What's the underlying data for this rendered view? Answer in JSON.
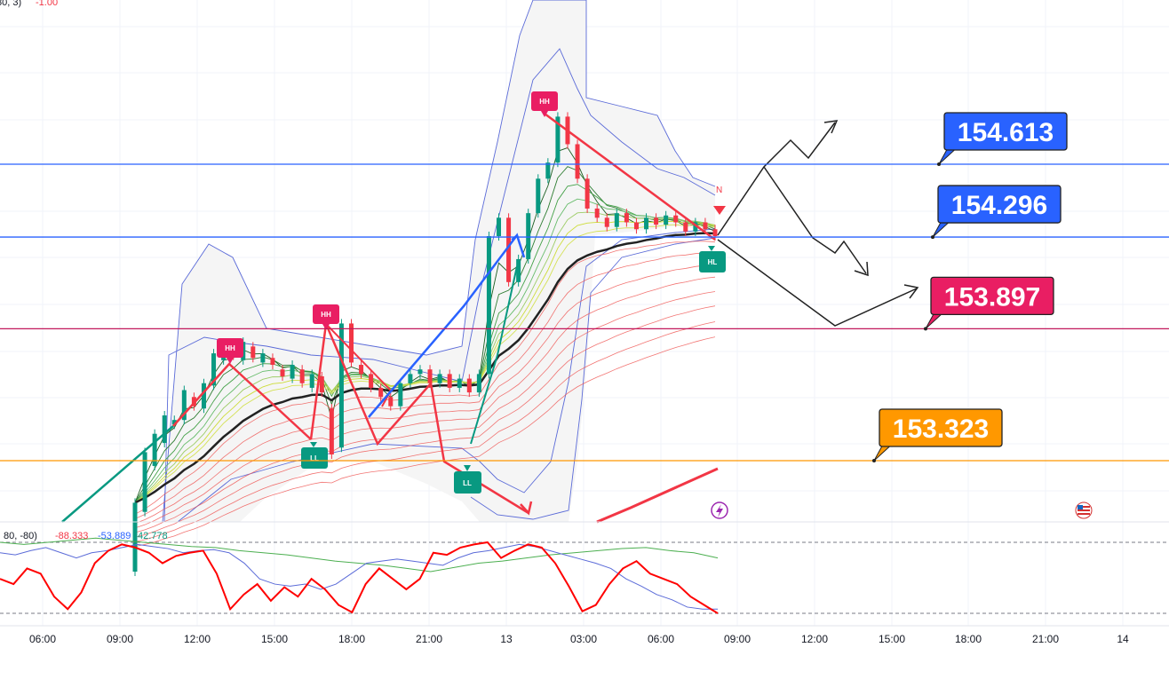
{
  "top_indicator_fragment": {
    "text": "80, 3)",
    "value": "-1.00"
  },
  "oscillator_legend": {
    "params": "80, -80)",
    "values": [
      {
        "text": "-88.333",
        "color": "#f23645"
      },
      {
        "text": "-53.889",
        "color": "#2962ff"
      },
      {
        "text": "42.778",
        "color": "#089981"
      }
    ]
  },
  "price_labels": [
    {
      "text": "154.613",
      "color": "#2962ff",
      "line_color": "#2962ff"
    },
    {
      "text": "154.296",
      "color": "#2962ff",
      "line_color": "#2962ff"
    },
    {
      "text": "153.897",
      "color": "#e91e63",
      "line_color": "#c2185b"
    },
    {
      "text": "153.323",
      "color": "#ff9800",
      "line_color": "#ff9800"
    }
  ],
  "icons": {
    "flash": "flash-icon",
    "flag": "us-flag-icon"
  },
  "chart_data": {
    "type": "candlestick",
    "time_axis": [
      "06:00",
      "09:00",
      "12:00",
      "15:00",
      "18:00",
      "21:00",
      "13",
      "03:00",
      "06:00",
      "09:00",
      "12:00",
      "15:00",
      "18:00",
      "21:00",
      "14"
    ],
    "price_range": [
      152.85,
      155.4
    ],
    "levels": [
      154.613,
      154.296,
      153.897,
      153.323
    ],
    "candles": [
      [
        152.84,
        153.14
      ],
      [
        153.1,
        153.36
      ],
      [
        153.3,
        153.44
      ],
      [
        153.4,
        153.52
      ],
      [
        153.48,
        153.5
      ],
      [
        153.5,
        153.63
      ],
      [
        153.6,
        153.56
      ],
      [
        153.55,
        153.66
      ],
      [
        153.65,
        153.79
      ],
      [
        153.76,
        153.82
      ],
      [
        153.8,
        153.78
      ],
      [
        153.76,
        153.84
      ],
      [
        153.82,
        153.77
      ],
      [
        153.75,
        153.79
      ],
      [
        153.77,
        153.74
      ],
      [
        153.72,
        153.69
      ],
      [
        153.68,
        153.74
      ],
      [
        153.72,
        153.66
      ],
      [
        153.64,
        153.7
      ],
      [
        153.69,
        153.62
      ],
      [
        153.55,
        153.35
      ],
      [
        153.38,
        153.92
      ],
      [
        153.92,
        153.75
      ],
      [
        153.74,
        153.7
      ],
      [
        153.7,
        153.64
      ],
      [
        153.64,
        153.6
      ],
      [
        153.6,
        153.56
      ],
      [
        153.56,
        153.66
      ],
      [
        153.66,
        153.7
      ],
      [
        153.7,
        153.72
      ],
      [
        153.72,
        153.66
      ],
      [
        153.66,
        153.7
      ],
      [
        153.7,
        153.64
      ],
      [
        153.64,
        153.68
      ],
      [
        153.68,
        153.62
      ],
      [
        153.62,
        153.7
      ],
      [
        153.7,
        154.3
      ],
      [
        154.3,
        154.38
      ],
      [
        154.38,
        154.1
      ],
      [
        154.1,
        154.2
      ],
      [
        154.2,
        154.4
      ],
      [
        154.4,
        154.55
      ],
      [
        154.55,
        154.62
      ],
      [
        154.62,
        154.82
      ],
      [
        154.82,
        154.7
      ],
      [
        154.7,
        154.55
      ],
      [
        154.55,
        154.42
      ],
      [
        154.42,
        154.38
      ],
      [
        154.38,
        154.34
      ],
      [
        154.34,
        154.4
      ],
      [
        154.4,
        154.36
      ],
      [
        154.36,
        154.33
      ],
      [
        154.33,
        154.38
      ],
      [
        154.38,
        154.35
      ],
      [
        154.35,
        154.39
      ],
      [
        154.39,
        154.36
      ],
      [
        154.36,
        154.32
      ],
      [
        154.32,
        154.36
      ],
      [
        154.36,
        154.33
      ],
      [
        154.33,
        154.3
      ]
    ],
    "oscillator": {
      "red": [
        -55,
        -60,
        -45,
        -50,
        -72,
        -84,
        -68,
        -40,
        -28,
        -22,
        -25,
        -30,
        -40,
        -33,
        -30,
        -28,
        -50,
        -84,
        -70,
        -60,
        -76,
        -63,
        -72,
        -55,
        -65,
        -80,
        -87,
        -60,
        -45,
        -55,
        -65,
        -55,
        -30,
        -32,
        -25,
        -22,
        -20,
        -35,
        -28,
        -22,
        -25,
        -40,
        -62,
        -86,
        -80,
        -60,
        -45,
        -38,
        -50,
        -55,
        -60,
        -72,
        -80,
        -88
      ],
      "blue": [
        -30,
        -32,
        -28,
        -25,
        -30,
        -35,
        -30,
        -28,
        -25,
        -22,
        -24,
        -26,
        -30,
        -28,
        -27,
        -30,
        -40,
        -55,
        -60,
        -62,
        -60,
        -65,
        -60,
        -50,
        -40,
        -38,
        -36,
        -38,
        -40,
        -42,
        -35,
        -30,
        -28,
        -25,
        -22,
        -24,
        -28,
        -32,
        -36,
        -40,
        -45,
        -55,
        -62,
        -70,
        -75,
        -82,
        -84,
        -84
      ],
      "green": [
        -20,
        -22,
        -20,
        -18,
        -16,
        -18,
        -20,
        -22,
        -24,
        -25,
        -28,
        -30,
        -32,
        -35,
        -38,
        -40,
        -42,
        -45,
        -48,
        -44,
        -40,
        -38,
        -35,
        -32,
        -30,
        -28,
        -26,
        -25,
        -28,
        -30,
        -35
      ]
    }
  }
}
